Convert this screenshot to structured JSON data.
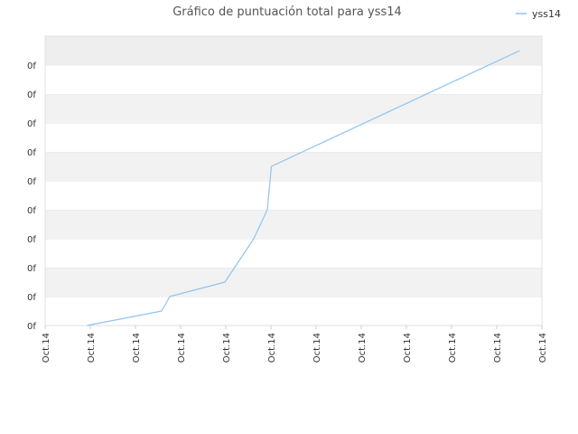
{
  "chart_data": {
    "type": "line",
    "title": "Gráfico de puntuación total para yss14",
    "xlabel": "",
    "ylabel": "",
    "legend": "top-right",
    "grid": true,
    "x_tick_labels": [
      "Oct.14",
      "Oct.14",
      "Oct.14",
      "Oct.14",
      "Oct.14",
      "Oct.14",
      "Oct.14",
      "Oct.14",
      "Oct.14",
      "Oct.14",
      "Oct.14",
      "Oct.14"
    ],
    "y_tick_labels": [
      "0f",
      "0f",
      "0f",
      "0f",
      "0f",
      "0f",
      "0f",
      "0f",
      "0f",
      "0f"
    ],
    "xlim": [
      0,
      11
    ],
    "ylim": [
      0,
      10
    ],
    "series": [
      {
        "name": "yss14",
        "color": "#8fc4ee",
        "x": [
          0.93,
          2.58,
          2.76,
          3.98,
          4.62,
          4.92,
          5.01,
          10.51
        ],
        "y": [
          0.0,
          0.5,
          1.0,
          1.5,
          3.0,
          4.0,
          5.5,
          9.5
        ]
      }
    ]
  }
}
